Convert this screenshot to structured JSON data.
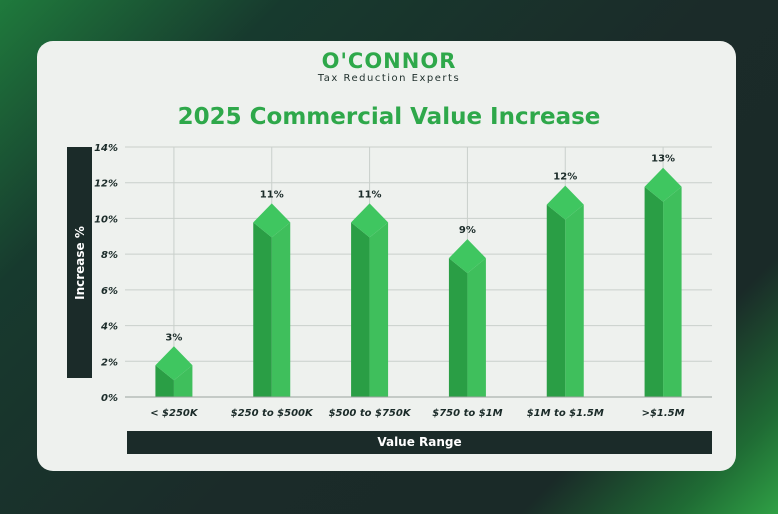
{
  "brand": {
    "logo_text": "O'CONNOR",
    "tagline": "Tax Reduction Experts"
  },
  "colors": {
    "accent": "#2ea84a",
    "bar_light": "#3fbf5c",
    "bar_dark": "#2a9e45",
    "dark": "#1b2b29",
    "card": "#eef1ee"
  },
  "chart_data": {
    "type": "bar",
    "title": "2025 Commercial Value Increase",
    "xlabel": "Value Range",
    "ylabel": "Increase %",
    "categories": [
      "< $250K",
      "$250 to $500K",
      "$500 to $750K",
      "$750 to $1M",
      "$1M to $1.5M",
      ">$1.5M"
    ],
    "values": [
      3,
      11,
      11,
      9,
      12,
      13
    ],
    "data_labels": [
      "3%",
      "11%",
      "11%",
      "9%",
      "12%",
      "13%"
    ],
    "value_for_height": [
      2,
      10,
      10,
      8,
      11,
      12
    ],
    "yticks": [
      "0%",
      "2%",
      "4%",
      "6%",
      "8%",
      "10%",
      "12%",
      "14%"
    ],
    "ylim": [
      0,
      14
    ],
    "grid": true,
    "legend": "none"
  }
}
